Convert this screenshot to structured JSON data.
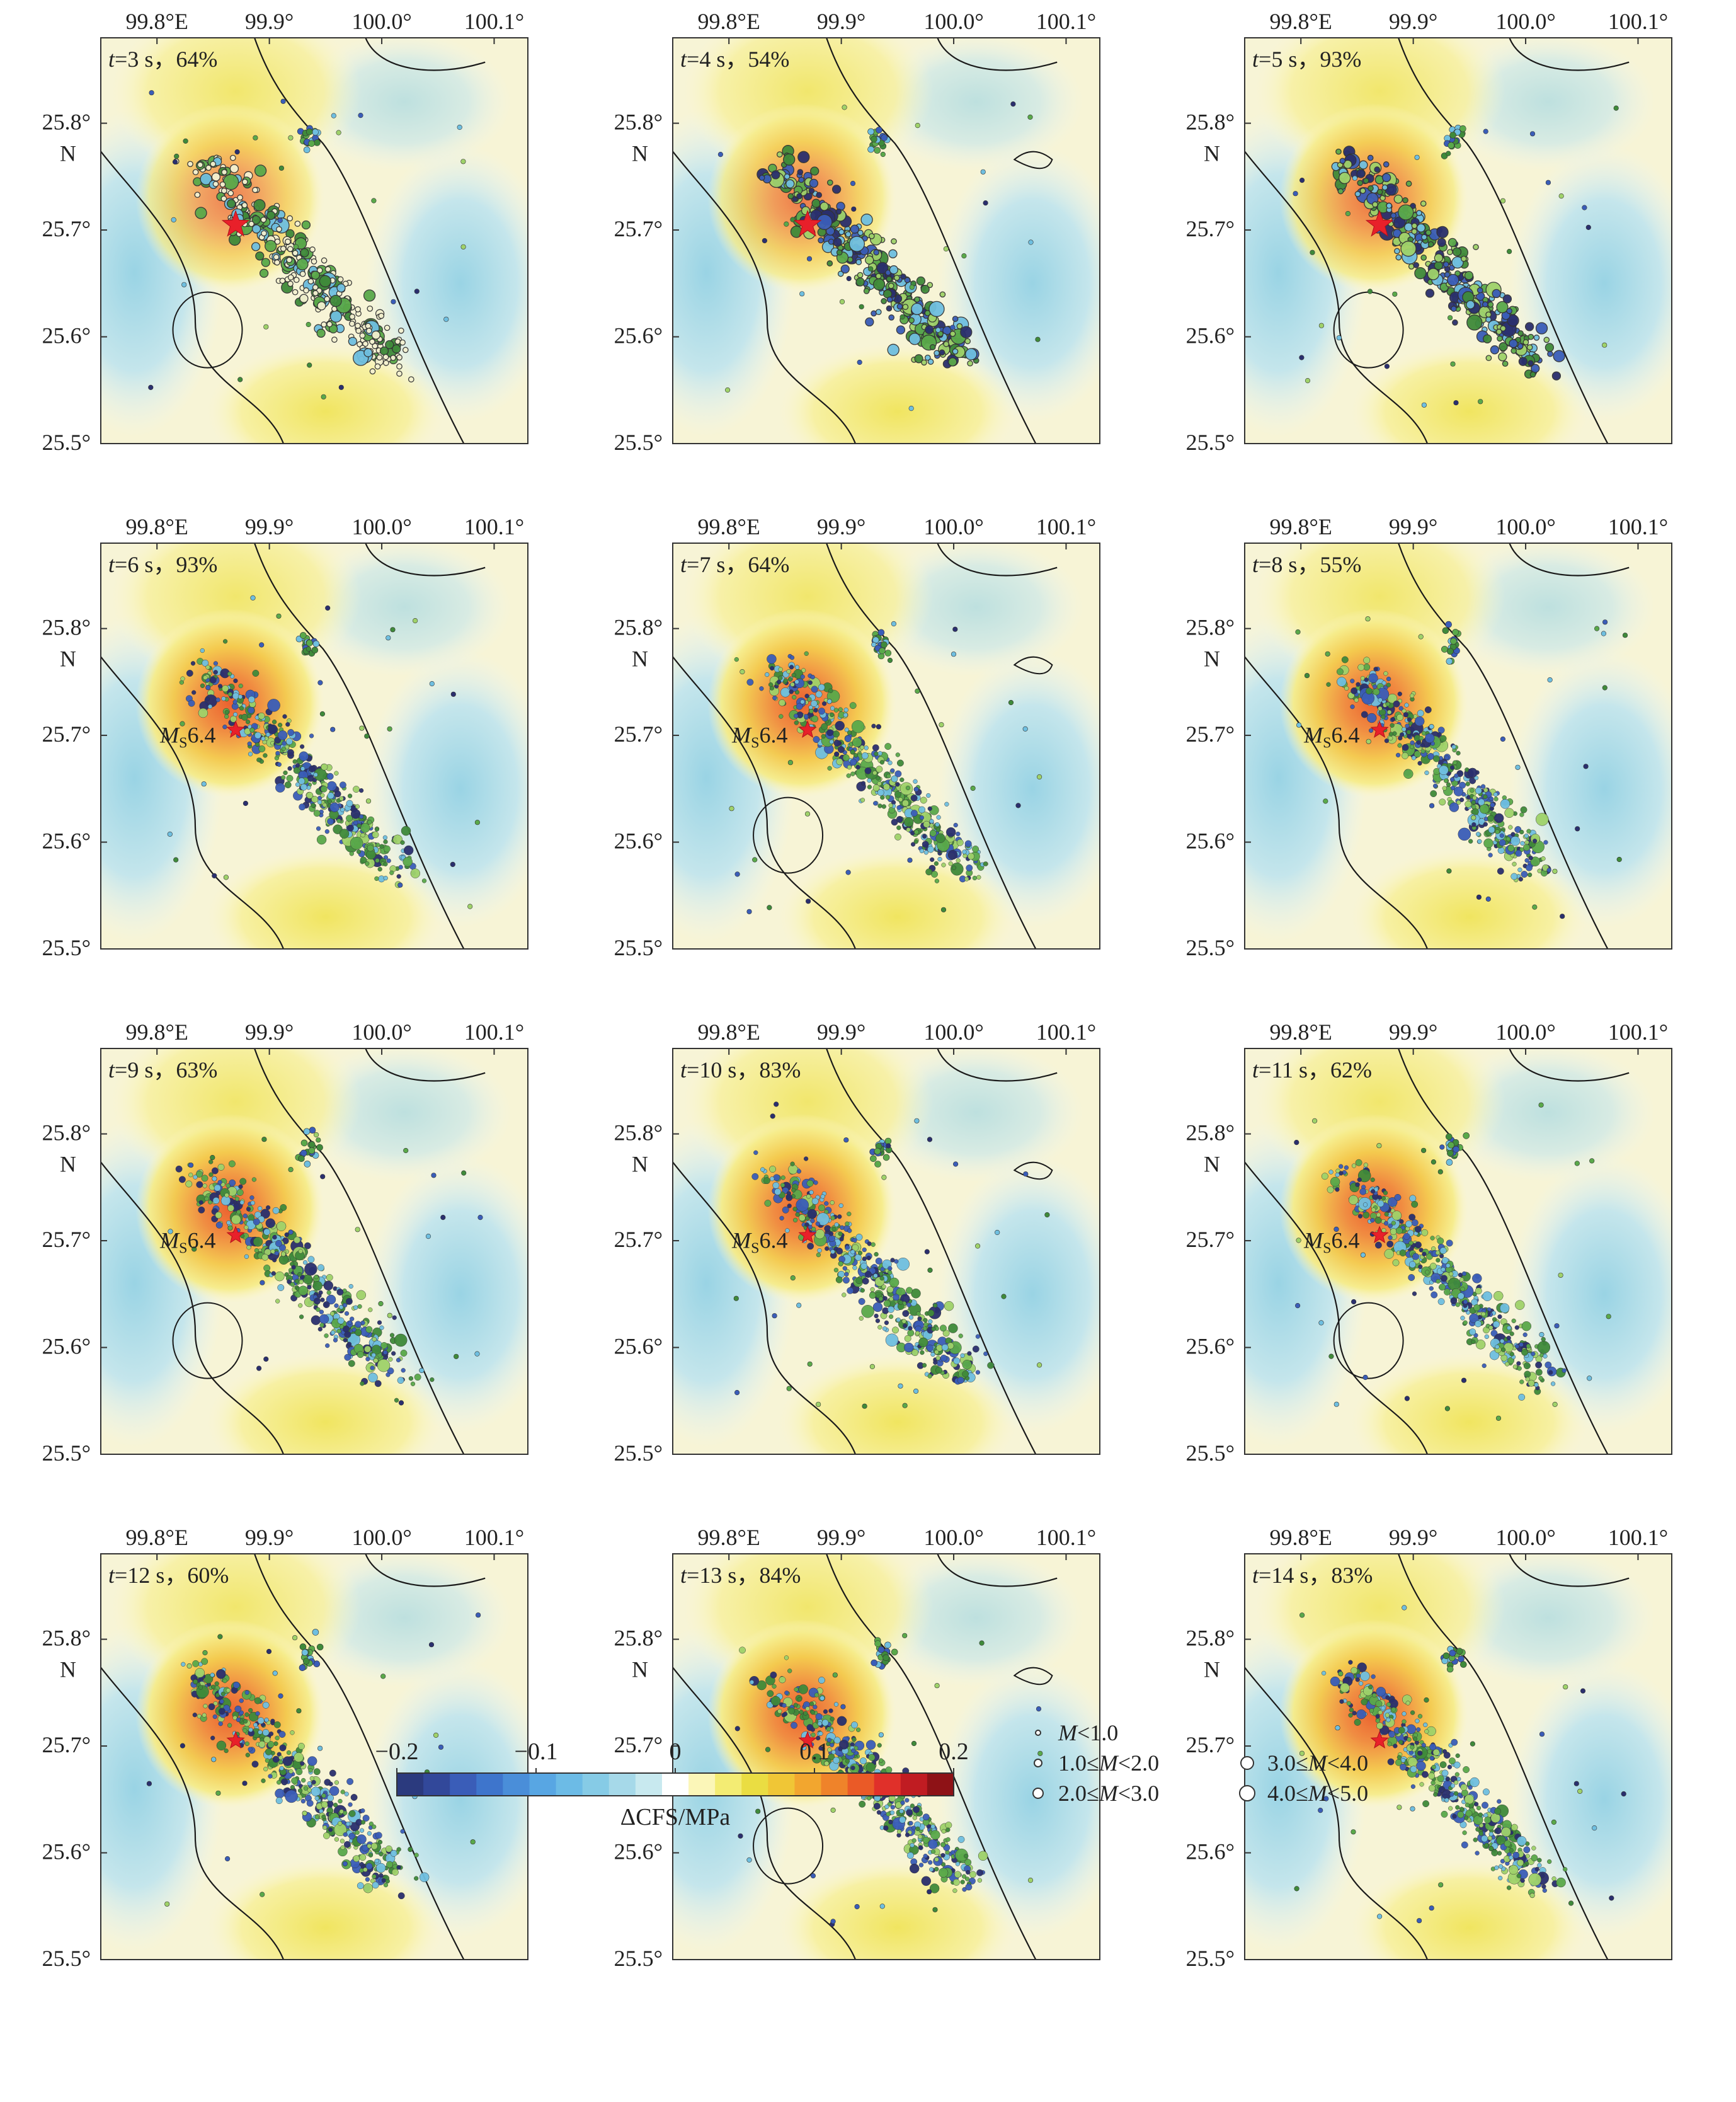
{
  "axes": {
    "lon_ticks": [
      {
        "value": 99.8,
        "label": "99.8°E"
      },
      {
        "value": 99.9,
        "label": "99.9°"
      },
      {
        "value": 100.0,
        "label": "100.0°"
      },
      {
        "value": 100.1,
        "label": "100.1°"
      }
    ],
    "lat_ticks": [
      {
        "value": 25.8,
        "label": "25.8°"
      },
      {
        "value": 25.7,
        "label": "25.7°"
      },
      {
        "value": 25.6,
        "label": "25.6°"
      },
      {
        "value": 25.5,
        "label": "25.5°"
      }
    ],
    "lat_unit": "N",
    "lon_range": [
      99.75,
      100.13
    ],
    "lat_range": [
      25.5,
      25.88
    ]
  },
  "panels": [
    {
      "t": "3",
      "pct": "64%",
      "ms_label": false
    },
    {
      "t": "4",
      "pct": "54%",
      "ms_label": false
    },
    {
      "t": "5",
      "pct": "93%",
      "ms_label": false
    },
    {
      "t": "6",
      "pct": "93%",
      "ms_label": true
    },
    {
      "t": "7",
      "pct": "64%",
      "ms_label": true
    },
    {
      "t": "8",
      "pct": "55%",
      "ms_label": true
    },
    {
      "t": "9",
      "pct": "63%",
      "ms_label": true
    },
    {
      "t": "10",
      "pct": "83%",
      "ms_label": true
    },
    {
      "t": "11",
      "pct": "62%",
      "ms_label": true
    },
    {
      "t": "12",
      "pct": "60%",
      "ms_label": false
    },
    {
      "t": "13",
      "pct": "84%",
      "ms_label": false
    },
    {
      "t": "14",
      "pct": "83%",
      "ms_label": false
    }
  ],
  "mainshock": {
    "lon": 99.87,
    "lat": 25.705,
    "label_prefix": "M",
    "label_sub": "S",
    "label_mag": "6.4"
  },
  "colorbar": {
    "ticks": [
      "−0.2",
      "−0.1",
      "0",
      "0.1",
      "0.2"
    ],
    "title": "ΔCFS/MPa",
    "range": [
      -0.2,
      0.2
    ],
    "colors": [
      "#2b3a7e",
      "#32489a",
      "#3a5db8",
      "#3e75cc",
      "#4a8ed9",
      "#58a6e3",
      "#6cbbe6",
      "#86cbe6",
      "#a6d9e9",
      "#c8e9ef",
      "#ffffff",
      "#fbf6b8",
      "#f3ec73",
      "#eadd42",
      "#f0c636",
      "#f2a62f",
      "#ef832a",
      "#ea5a27",
      "#e0302a",
      "#c01c22",
      "#8e1216"
    ]
  },
  "legend": [
    {
      "label": "M<1.0"
    },
    {
      "label": "1.0≤M<2.0"
    },
    {
      "label": "2.0≤M<3.0"
    },
    {
      "label": "3.0≤M<4.0"
    },
    {
      "label": "4.0≤M<5.0"
    }
  ],
  "colors": {
    "contour": "#1a1a1a",
    "star": "#e8202a",
    "quake_palette": [
      "#5aa94a",
      "#3f8a3a",
      "#6fbfe0",
      "#3a5db8",
      "#2a2f6e",
      "#9fd26a"
    ]
  }
}
